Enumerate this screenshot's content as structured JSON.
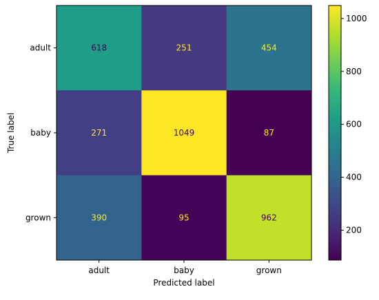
{
  "chart_data": {
    "type": "heatmap",
    "title": "",
    "xlabel": "Predicted label",
    "ylabel": "True label",
    "x_categories": [
      "adult",
      "baby",
      "grown"
    ],
    "y_categories": [
      "adult",
      "baby",
      "grown"
    ],
    "values": [
      [
        618,
        251,
        454
      ],
      [
        271,
        1049,
        87
      ],
      [
        390,
        95,
        962
      ]
    ],
    "colormap": "viridis",
    "vmin": 87,
    "vmax": 1049,
    "colorbar_ticks": [
      200,
      400,
      600,
      800,
      1000
    ],
    "colorbar_tick_labels": [
      "200",
      "400",
      "600",
      "800",
      "1000"
    ],
    "annotation_colors": {
      "on_dark": "#fde725",
      "on_light": "#440154"
    },
    "grid": false
  }
}
